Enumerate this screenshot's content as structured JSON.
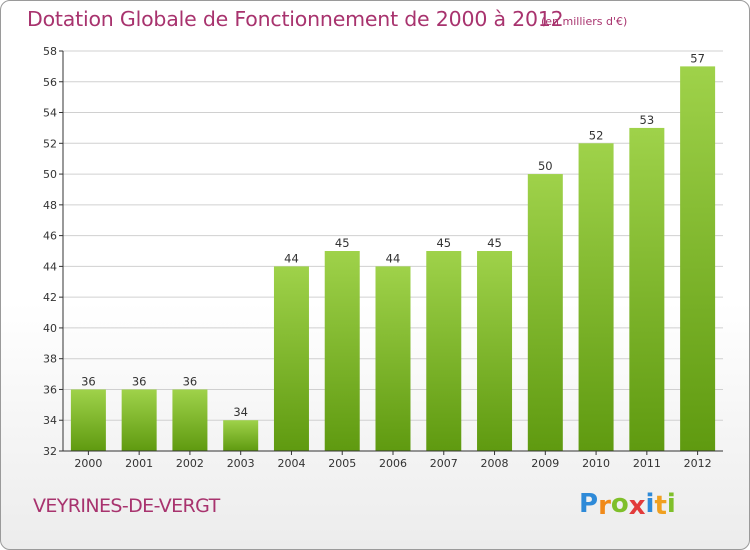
{
  "chart_data": {
    "type": "bar",
    "title": "Dotation Globale de Fonctionnement de 2000 à 2012",
    "subtitle": "(en milliers d'€)",
    "categories": [
      "2000",
      "2001",
      "2002",
      "2003",
      "2004",
      "2005",
      "2006",
      "2007",
      "2008",
      "2009",
      "2010",
      "2011",
      "2012"
    ],
    "values": [
      36,
      36,
      36,
      34,
      44,
      45,
      44,
      45,
      45,
      50,
      52,
      53,
      57
    ],
    "ylim": [
      32,
      58
    ],
    "yticks": [
      32,
      34,
      36,
      38,
      40,
      42,
      44,
      46,
      48,
      50,
      52,
      54,
      56,
      58
    ],
    "grid": true,
    "bar_color_top": "#9fd24a",
    "bar_color_bottom": "#5f9a10"
  },
  "footer": {
    "commune": "VEYRINES-DE-VERGT",
    "logo": {
      "text": "Proxiti",
      "letters": [
        "P",
        "r",
        "o",
        "x",
        "i",
        "t",
        "i"
      ],
      "colors": [
        "#2e8ad8",
        "#f08a1a",
        "#7fbf2a",
        "#e23b3b",
        "#2e8ad8",
        "#f0a020",
        "#7fbf2a"
      ]
    }
  },
  "colors": {
    "title": "#a8336e",
    "axis": "#333333",
    "grid": "#d0d0d0"
  }
}
